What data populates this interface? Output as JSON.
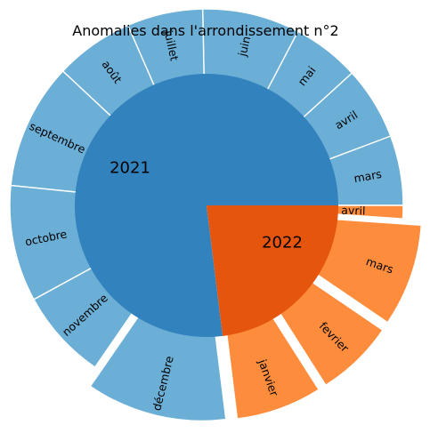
{
  "chart_data": {
    "type": "sunburst",
    "title": "Anomalies dans l'arrondissement n°2",
    "colors": {
      "2021_inner": "#3182bd",
      "2021_outer": "#6baed6",
      "2022_inner": "#e6550d",
      "2022_outer": "#fd8d3c",
      "edge": "#ffffff"
    },
    "series": [
      {
        "name": "2021",
        "months": [
          {
            "label": "mars",
            "value": 2.64,
            "exploded": false
          },
          {
            "label": "avril",
            "value": 2.77,
            "exploded": false
          },
          {
            "label": "mai",
            "value": 2.55,
            "exploded": false
          },
          {
            "label": "juin",
            "value": 3.68,
            "exploded": false
          },
          {
            "label": "juillet",
            "value": 2.87,
            "exploded": false
          },
          {
            "label": "août",
            "value": 2.98,
            "exploded": false
          },
          {
            "label": "septembre",
            "value": 4.76,
            "exploded": false
          },
          {
            "label": "octobre",
            "value": 4.4,
            "exploded": false
          },
          {
            "label": "novembre",
            "value": 3.43,
            "exploded": false
          },
          {
            "label": "décembre",
            "value": 5.31,
            "exploded": true
          }
        ]
      },
      {
        "name": "2022",
        "months": [
          {
            "label": "janvier",
            "value": 3.25,
            "exploded": true
          },
          {
            "label": "fevrier",
            "value": 2.97,
            "exploded": true
          },
          {
            "label": "mars",
            "value": 3.88,
            "exploded": true
          },
          {
            "label": "avril",
            "value": 0.5,
            "exploded": false
          }
        ]
      }
    ]
  }
}
